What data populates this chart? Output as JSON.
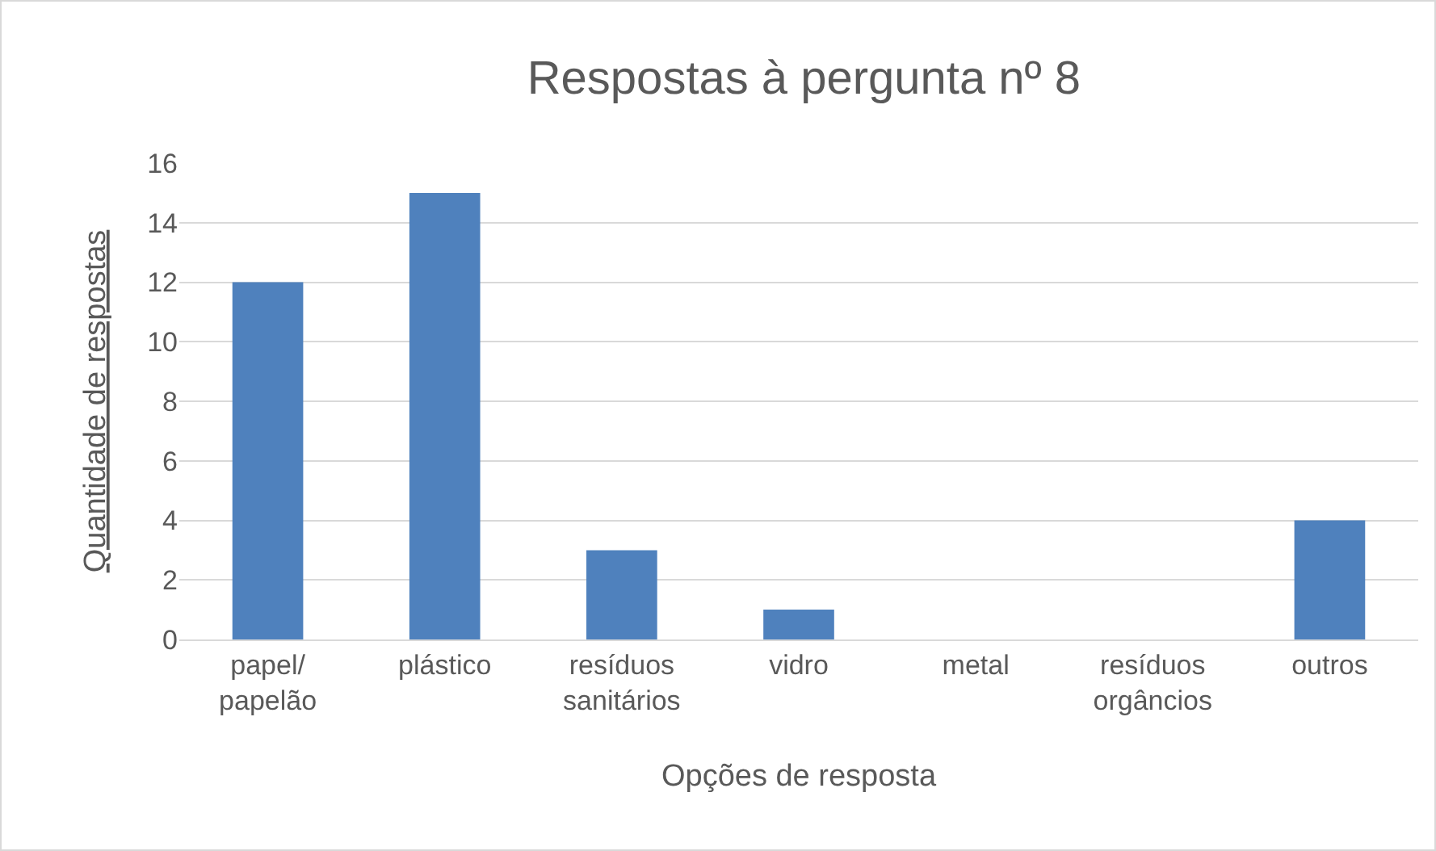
{
  "chart_data": {
    "type": "bar",
    "title": "Respostas à pergunta nº 8",
    "xlabel": "Opções de resposta",
    "ylabel": "Quantidade de respostas",
    "categories": [
      "papel/papelão",
      "plástico",
      "resíduos sanitários",
      "vidro",
      "metal",
      "resíduos orgâncios",
      "outros"
    ],
    "values": [
      12,
      15,
      3,
      1,
      0,
      0,
      4
    ],
    "color": "#4f81bd",
    "ylim": [
      0,
      16
    ],
    "yticks": [
      0,
      2,
      4,
      6,
      8,
      10,
      12,
      14,
      16
    ],
    "grid": "y",
    "legend": false
  }
}
